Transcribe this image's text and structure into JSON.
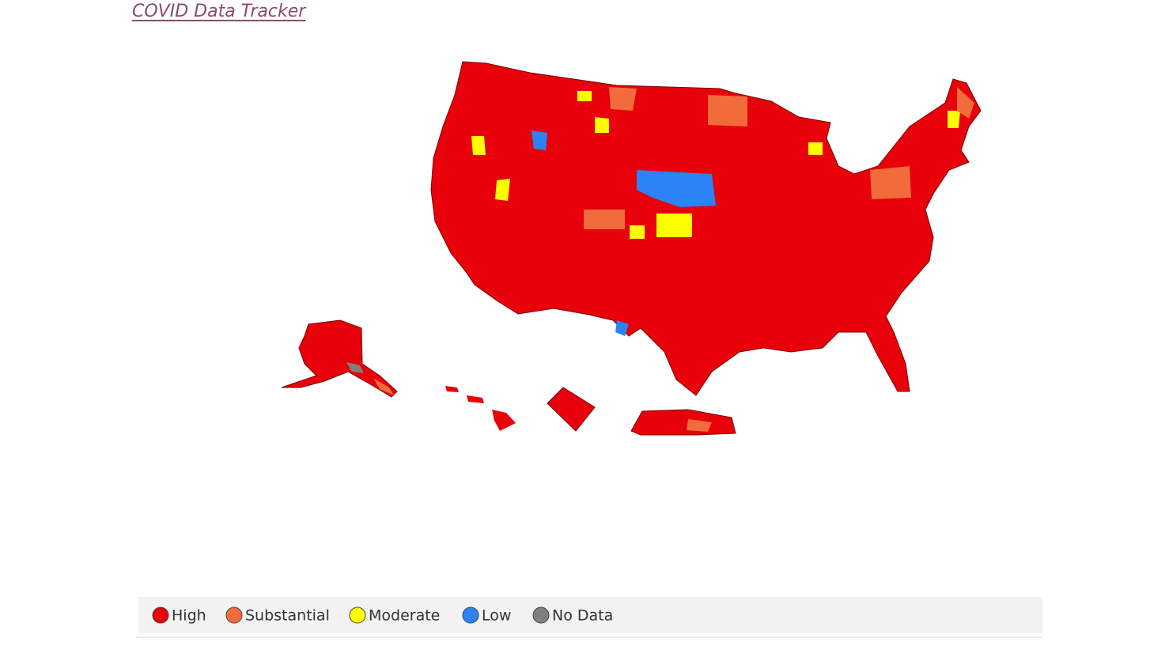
{
  "header": {
    "title": "COVID Data Tracker"
  },
  "legend": {
    "items": [
      {
        "label": "High",
        "color": "#e8000b"
      },
      {
        "label": "Substantial",
        "color": "#f26b3a"
      },
      {
        "label": "Moderate",
        "color": "#ffff00"
      },
      {
        "label": "Low",
        "color": "#2b83f6"
      },
      {
        "label": "No Data",
        "color": "#808080"
      }
    ]
  }
}
